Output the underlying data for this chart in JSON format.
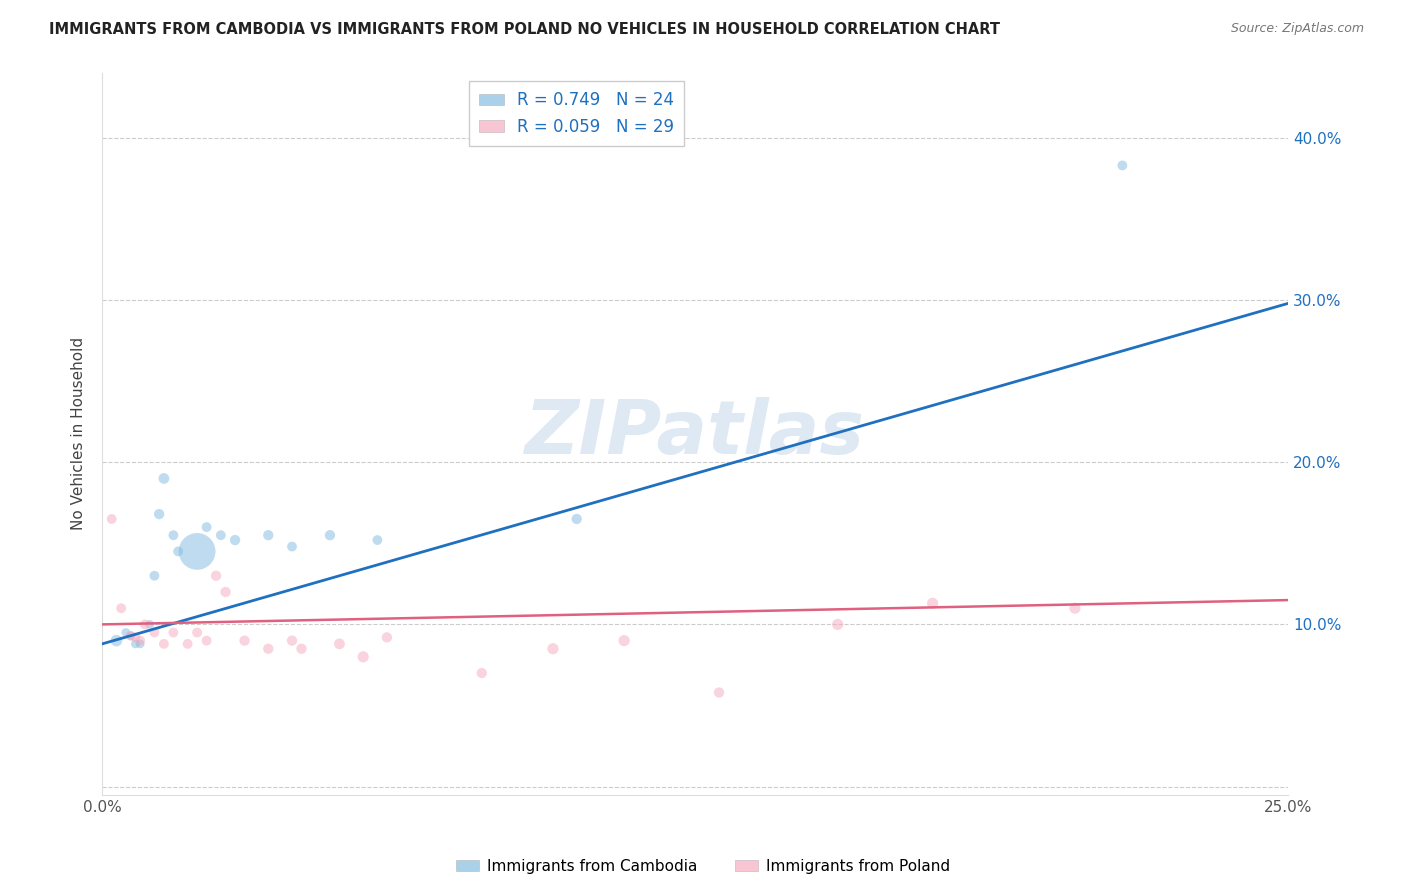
{
  "title": "IMMIGRANTS FROM CAMBODIA VS IMMIGRANTS FROM POLAND NO VEHICLES IN HOUSEHOLD CORRELATION CHART",
  "source": "Source: ZipAtlas.com",
  "ylabel": "No Vehicles in Household",
  "xlim": [
    0.0,
    0.25
  ],
  "ylim": [
    -0.005,
    0.44
  ],
  "xticks": [
    0.0,
    0.05,
    0.1,
    0.15,
    0.2,
    0.25
  ],
  "yticks": [
    0.0,
    0.1,
    0.2,
    0.3,
    0.4
  ],
  "cambodia_color": "#7fb9e0",
  "poland_color": "#f5a8bc",
  "cambodia_line_color": "#2070c0",
  "poland_line_color": "#e06080",
  "cambodia_line_x0": 0.0,
  "cambodia_line_y0": 0.088,
  "cambodia_line_x1": 0.25,
  "cambodia_line_y1": 0.298,
  "poland_line_x0": 0.0,
  "poland_line_y0": 0.1,
  "poland_line_x1": 0.25,
  "poland_line_y1": 0.115,
  "cambodia_x": [
    0.003,
    0.005,
    0.006,
    0.007,
    0.008,
    0.01,
    0.011,
    0.012,
    0.013,
    0.015,
    0.016,
    0.02,
    0.022,
    0.025,
    0.028,
    0.035,
    0.04,
    0.048,
    0.058,
    0.1,
    0.215
  ],
  "cambodia_y": [
    0.09,
    0.095,
    0.093,
    0.088,
    0.088,
    0.1,
    0.13,
    0.168,
    0.19,
    0.155,
    0.145,
    0.145,
    0.16,
    0.155,
    0.152,
    0.155,
    0.148,
    0.155,
    0.152,
    0.165,
    0.383
  ],
  "cambodia_size": [
    70,
    40,
    40,
    40,
    40,
    40,
    50,
    55,
    60,
    50,
    50,
    700,
    50,
    50,
    55,
    55,
    50,
    55,
    50,
    55,
    50
  ],
  "poland_x": [
    0.002,
    0.004,
    0.006,
    0.007,
    0.008,
    0.009,
    0.011,
    0.013,
    0.015,
    0.018,
    0.02,
    0.022,
    0.024,
    0.026,
    0.03,
    0.035,
    0.04,
    0.042,
    0.05,
    0.055,
    0.06,
    0.08,
    0.095,
    0.11,
    0.13,
    0.155,
    0.175,
    0.205
  ],
  "poland_y": [
    0.165,
    0.11,
    0.093,
    0.092,
    0.09,
    0.1,
    0.095,
    0.088,
    0.095,
    0.088,
    0.095,
    0.09,
    0.13,
    0.12,
    0.09,
    0.085,
    0.09,
    0.085,
    0.088,
    0.08,
    0.092,
    0.07,
    0.085,
    0.09,
    0.058,
    0.1,
    0.113,
    0.11
  ],
  "poland_size": [
    50,
    50,
    50,
    50,
    50,
    50,
    50,
    50,
    50,
    50,
    50,
    50,
    55,
    55,
    55,
    55,
    55,
    55,
    60,
    65,
    55,
    55,
    65,
    65,
    55,
    65,
    65,
    65
  ],
  "watermark_text": "ZIPatlas",
  "legend_r_cambodia": "R = 0.749",
  "legend_n_cambodia": "N = 24",
  "legend_r_poland": "R = 0.059",
  "legend_n_poland": "N = 29"
}
